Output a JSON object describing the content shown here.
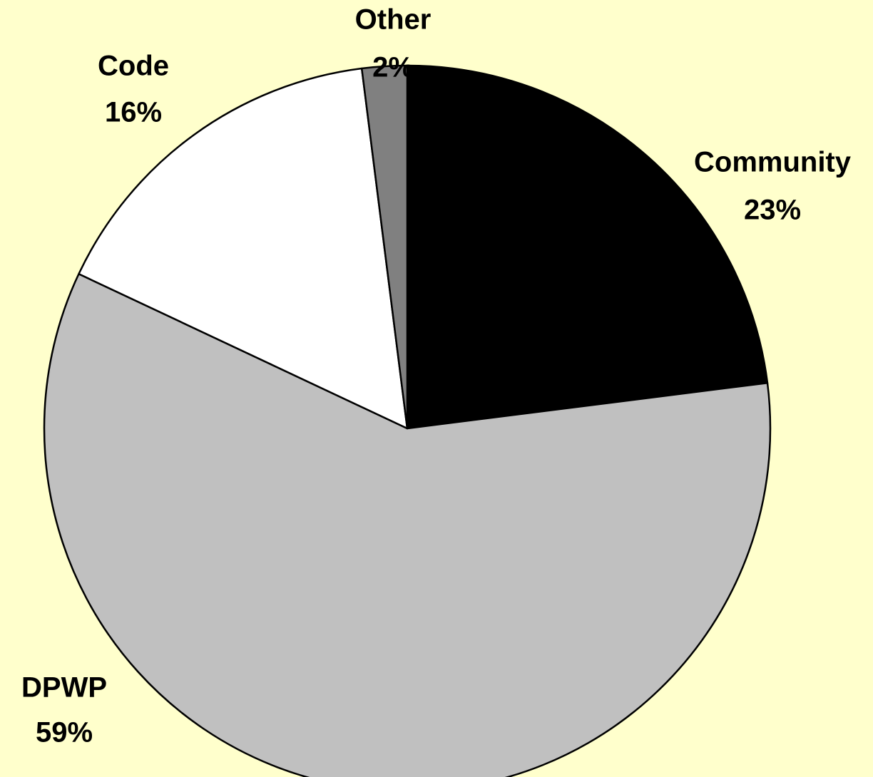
{
  "chart_data": {
    "type": "pie",
    "categories": [
      "Community",
      "DPWP",
      "Code",
      "Other"
    ],
    "values": [
      23,
      59,
      16,
      2
    ],
    "value_labels": [
      "23%",
      "59%",
      "16%",
      "2%"
    ],
    "colors": [
      "#000000",
      "#c0c0c0",
      "#ffffff",
      "#808080"
    ]
  }
}
